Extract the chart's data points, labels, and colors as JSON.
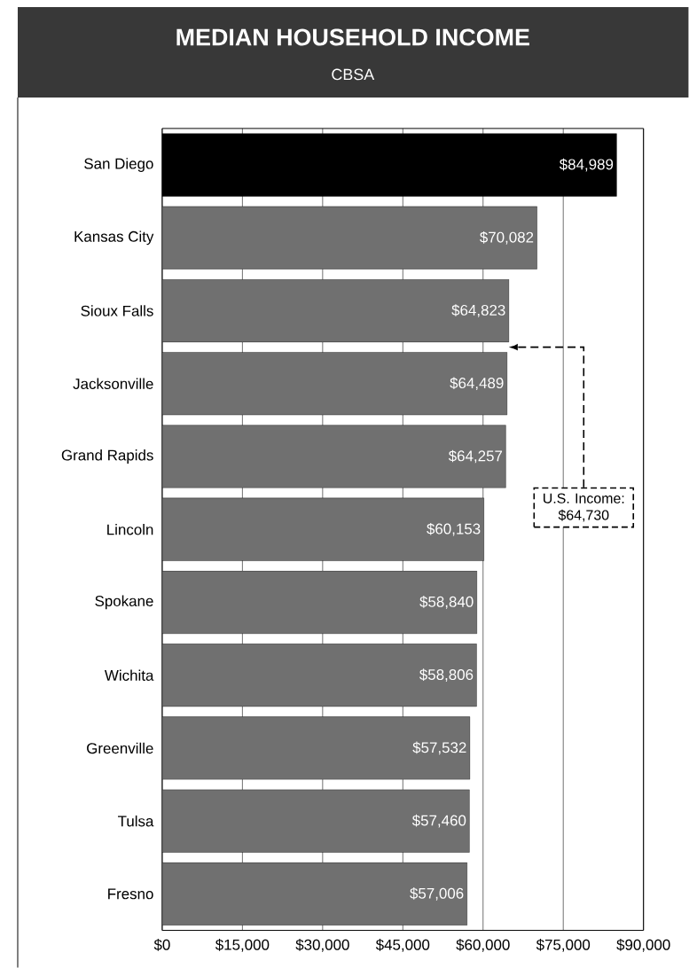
{
  "chart_data": {
    "type": "bar",
    "orientation": "horizontal",
    "title": "MEDIAN HOUSEHOLD INCOME",
    "subtitle": "CBSA",
    "categories": [
      "San Diego",
      "Kansas City",
      "Sioux Falls",
      "Jacksonville",
      "Grand Rapids",
      "Lincoln",
      "Spokane",
      "Wichita",
      "Greenville",
      "Tulsa",
      "Fresno"
    ],
    "values": [
      84989,
      70082,
      64823,
      64489,
      64257,
      60153,
      58840,
      58806,
      57532,
      57460,
      57006
    ],
    "value_labels": [
      "$84,989",
      "$70,082",
      "$64,823",
      "$64,489",
      "$64,257",
      "$60,153",
      "$58,840",
      "$58,806",
      "$57,532",
      "$57,460",
      "$57,006"
    ],
    "colors": [
      "#000000",
      "#707070",
      "#707070",
      "#707070",
      "#707070",
      "#707070",
      "#707070",
      "#707070",
      "#707070",
      "#707070",
      "#707070"
    ],
    "xlim": [
      0,
      90000
    ],
    "xticks": [
      {
        "value": 0,
        "label": "$0"
      },
      {
        "value": 15000,
        "label": "$15,000"
      },
      {
        "value": 30000,
        "label": "$30,000"
      },
      {
        "value": 45000,
        "label": "$45,000"
      },
      {
        "value": 60000,
        "label": "$60,000"
      },
      {
        "value": 75000,
        "label": "$75,000"
      },
      {
        "value": 90000,
        "label": "$90,000"
      }
    ],
    "grid": "x",
    "annotations": [
      "U.S. Income: $64,730"
    ]
  }
}
